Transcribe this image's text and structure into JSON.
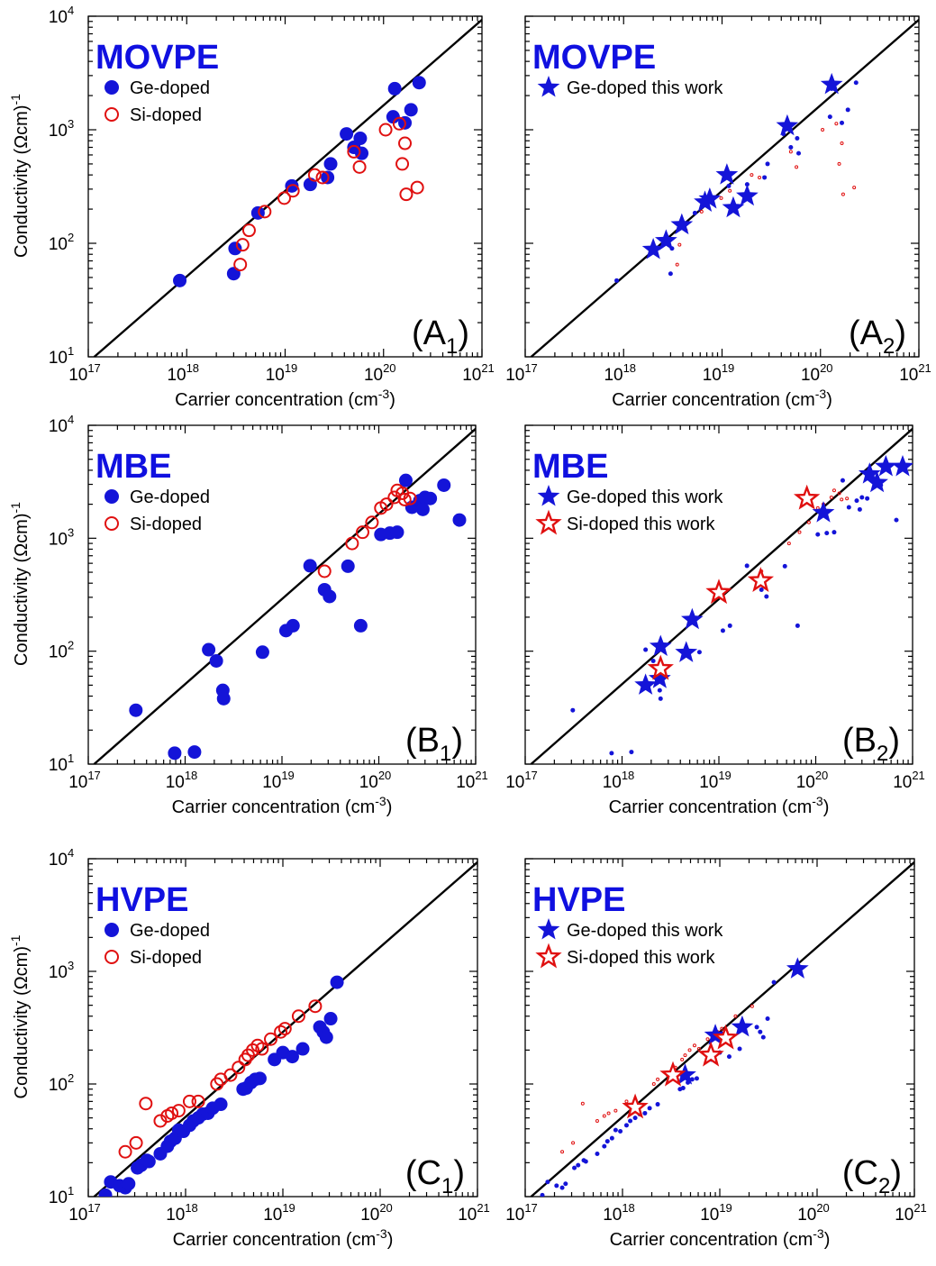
{
  "colors": {
    "ge": "#1414d8",
    "si": "#e01010",
    "title": "#1010e0"
  },
  "chart_data": [
    {
      "id": "A1",
      "type": "scatter",
      "title": "MOVPE",
      "label_main": "A",
      "label_sub": "1",
      "xlabel": "Carrier concentration (cm",
      "xlabel_sup": "-3",
      "xlabel_end": ")",
      "ylabel": "Conductivity (Ωcm)",
      "ylabel_sup": "-1",
      "x_scale": "log",
      "y_scale": "log",
      "xlim": [
        1e+17,
        1e+21
      ],
      "ylim": [
        10,
        10000
      ],
      "legend_position": "top-left",
      "x_ticks": [
        {
          "base": "10",
          "exp": "17"
        },
        {
          "base": "10",
          "exp": "18"
        },
        {
          "base": "10",
          "exp": "19"
        },
        {
          "base": "10",
          "exp": "20"
        },
        {
          "base": "10",
          "exp": "21"
        }
      ],
      "y_ticks": [
        {
          "base": "10",
          "exp": "1"
        },
        {
          "base": "10",
          "exp": "2"
        },
        {
          "base": "10",
          "exp": "3"
        },
        {
          "base": "10",
          "exp": "4"
        }
      ],
      "reference_line": [
        [
          1.15e+17,
          10
        ],
        [
          1.1e+21,
          10000
        ]
      ],
      "series": [
        {
          "name": "Ge-doped",
          "marker": "filled-circle",
          "color": "#1414d8",
          "points": [
            [
              8.5e+17,
              47
            ],
            [
              3e+18,
              54
            ],
            [
              3.1e+18,
              90
            ],
            [
              5.3e+18,
              185
            ],
            [
              1.17e+19,
              320
            ],
            [
              1.8e+19,
              330
            ],
            [
              2.7e+19,
              380
            ],
            [
              2.9e+19,
              500
            ],
            [
              4.2e+19,
              920
            ],
            [
              5e+19,
              700
            ],
            [
              5.8e+19,
              840
            ],
            [
              6e+19,
              620
            ],
            [
              1.25e+20,
              1300
            ],
            [
              1.3e+20,
              2300
            ],
            [
              1.65e+20,
              1150
            ],
            [
              1.9e+20,
              1500
            ],
            [
              2.3e+20,
              2600
            ]
          ]
        },
        {
          "name": "Si-doped",
          "marker": "open-circle",
          "color": "#e01010",
          "points": [
            [
              3.5e+18,
              65
            ],
            [
              3.7e+18,
              97
            ],
            [
              4.3e+18,
              130
            ],
            [
              6.2e+18,
              190
            ],
            [
              9.8e+18,
              250
            ],
            [
              1.2e+19,
              290
            ],
            [
              2e+19,
              400
            ],
            [
              2.4e+19,
              380
            ],
            [
              5e+19,
              640
            ],
            [
              5.7e+19,
              470
            ],
            [
              1.05e+20,
              1000
            ],
            [
              1.45e+20,
              1130
            ],
            [
              1.55e+20,
              500
            ],
            [
              1.65e+20,
              760
            ],
            [
              1.7e+20,
              270
            ],
            [
              2.2e+20,
              310
            ]
          ]
        }
      ]
    },
    {
      "id": "A2",
      "type": "scatter",
      "title": "MOVPE",
      "label_main": "A",
      "label_sub": "2",
      "xlabel": "Carrier concentration (cm",
      "xlabel_sup": "-3",
      "xlabel_end": ")",
      "x_scale": "log",
      "y_scale": "log",
      "xlim": [
        1e+17,
        1e+21
      ],
      "ylim": [
        10,
        10000
      ],
      "legend_position": "top-left",
      "x_ticks": [
        {
          "base": "10",
          "exp": "17"
        },
        {
          "base": "10",
          "exp": "18"
        },
        {
          "base": "10",
          "exp": "19"
        },
        {
          "base": "10",
          "exp": "20"
        },
        {
          "base": "10",
          "exp": "21"
        }
      ],
      "reference_line": [
        [
          1.15e+17,
          10
        ],
        [
          1.1e+21,
          10000
        ]
      ],
      "background_from": "A1",
      "series": [
        {
          "name": "Ge-doped this work",
          "marker": "filled-star",
          "color": "#1414d8",
          "points": [
            [
              2e+18,
              88
            ],
            [
              2.7e+18,
              105
            ],
            [
              3.9e+18,
              145
            ],
            [
              6.7e+18,
              230
            ],
            [
              7.5e+18,
              245
            ],
            [
              1.12e+19,
              400
            ],
            [
              1.3e+19,
              205
            ],
            [
              1.8e+19,
              260
            ],
            [
              4.6e+19,
              1080
            ],
            [
              1.3e+20,
              2500
            ]
          ]
        }
      ]
    },
    {
      "id": "B1",
      "type": "scatter",
      "title": "MBE",
      "label_main": "B",
      "label_sub": "1",
      "xlabel": "Carrier concentration (cm",
      "xlabel_sup": "-3",
      "xlabel_end": ")",
      "ylabel": "Conductivity (Ωcm)",
      "ylabel_sup": "-1",
      "x_scale": "log",
      "y_scale": "log",
      "xlim": [
        1e+17,
        1e+21
      ],
      "ylim": [
        10,
        10000
      ],
      "legend_position": "top-left",
      "x_ticks": [
        {
          "base": "10",
          "exp": "17"
        },
        {
          "base": "10",
          "exp": "18"
        },
        {
          "base": "10",
          "exp": "19"
        },
        {
          "base": "10",
          "exp": "20"
        },
        {
          "base": "10",
          "exp": "21"
        }
      ],
      "y_ticks": [
        {
          "base": "10",
          "exp": "1"
        },
        {
          "base": "10",
          "exp": "2"
        },
        {
          "base": "10",
          "exp": "3"
        },
        {
          "base": "10",
          "exp": "4"
        }
      ],
      "reference_line": [
        [
          1.15e+17,
          10
        ],
        [
          1.1e+21,
          10000
        ]
      ],
      "series": [
        {
          "name": "Ge-doped",
          "marker": "filled-circle",
          "color": "#1414d8",
          "points": [
            [
              3.1e+17,
              30
            ],
            [
              7.8e+17,
              12.5
            ],
            [
              1.25e+18,
              12.8
            ],
            [
              1.75e+18,
              103
            ],
            [
              2.1e+18,
              82
            ],
            [
              2.45e+18,
              45
            ],
            [
              2.5e+18,
              38
            ],
            [
              6.3e+18,
              98
            ],
            [
              1.1e+19,
              152
            ],
            [
              1.3e+19,
              168
            ],
            [
              1.95e+19,
              570
            ],
            [
              2.75e+19,
              350
            ],
            [
              3.1e+19,
              305
            ],
            [
              6.5e+19,
              168
            ],
            [
              4.8e+19,
              565
            ],
            [
              1.05e+20,
              1080
            ],
            [
              1.3e+20,
              1110
            ],
            [
              1.55e+20,
              1130
            ],
            [
              1.9e+20,
              3250
            ],
            [
              2.2e+20,
              1880
            ],
            [
              2.65e+20,
              2150
            ],
            [
              2.85e+20,
              1800
            ],
            [
              3e+20,
              2300
            ],
            [
              3.4e+20,
              2250
            ],
            [
              4.7e+20,
              2950
            ],
            [
              6.8e+20,
              1450
            ]
          ]
        },
        {
          "name": "Si-doped",
          "marker": "open-circle",
          "color": "#e01010",
          "points": [
            [
              2.75e+19,
              510
            ],
            [
              5.3e+19,
              900
            ],
            [
              6.8e+19,
              1130
            ],
            [
              8.5e+19,
              1380
            ],
            [
              1.05e+20,
              1850
            ],
            [
              1.2e+20,
              2000
            ],
            [
              1.45e+20,
              2300
            ],
            [
              1.55e+20,
              2650
            ],
            [
              1.75e+20,
              2500
            ],
            [
              1.85e+20,
              2200
            ],
            [
              2.1e+20,
              2250
            ]
          ]
        }
      ]
    },
    {
      "id": "B2",
      "type": "scatter",
      "title": "MBE",
      "label_main": "B",
      "label_sub": "2",
      "xlabel": "Carrier concentration (cm",
      "xlabel_sup": "-3",
      "xlabel_end": ")",
      "x_scale": "log",
      "y_scale": "log",
      "xlim": [
        1e+17,
        1e+21
      ],
      "ylim": [
        10,
        10000
      ],
      "legend_position": "top-left",
      "x_ticks": [
        {
          "base": "10",
          "exp": "17"
        },
        {
          "base": "10",
          "exp": "18"
        },
        {
          "base": "10",
          "exp": "19"
        },
        {
          "base": "10",
          "exp": "20"
        },
        {
          "base": "10",
          "exp": "21"
        }
      ],
      "reference_line": [
        [
          1.15e+17,
          10
        ],
        [
          1.1e+21,
          10000
        ]
      ],
      "background_from": "B1",
      "series": [
        {
          "name": "Ge-doped this work",
          "marker": "filled-star",
          "color": "#1414d8",
          "points": [
            [
              1.75e+18,
              50
            ],
            [
              2.45e+18,
              57
            ],
            [
              2.5e+18,
              110
            ],
            [
              4.6e+18,
              97
            ],
            [
              5.3e+18,
              190
            ],
            [
              1.2e+20,
              1680
            ],
            [
              3.6e+20,
              3700
            ],
            [
              4.3e+20,
              3100
            ],
            [
              5.3e+20,
              4300
            ],
            [
              7.9e+20,
              4300
            ]
          ]
        },
        {
          "name": "Si-doped this work",
          "marker": "open-star",
          "color": "#e01010",
          "points": [
            [
              2.5e+18,
              70
            ],
            [
              1e+19,
              330
            ],
            [
              2.7e+19,
              420
            ],
            [
              8.1e+19,
              2250
            ]
          ]
        }
      ]
    },
    {
      "id": "C1",
      "type": "scatter",
      "title": "HVPE",
      "label_main": "C",
      "label_sub": "1",
      "xlabel": "Carrier concentration (cm",
      "xlabel_sup": "-3",
      "xlabel_end": ")",
      "ylabel": "Conductivity (Ωcm)",
      "ylabel_sup": "-1",
      "x_scale": "log",
      "y_scale": "log",
      "xlim": [
        1e+17,
        1e+21
      ],
      "ylim": [
        10,
        10000
      ],
      "legend_position": "top-left",
      "x_ticks": [
        {
          "base": "10",
          "exp": "17"
        },
        {
          "base": "10",
          "exp": "18"
        },
        {
          "base": "10",
          "exp": "19"
        },
        {
          "base": "10",
          "exp": "20"
        },
        {
          "base": "10",
          "exp": "21"
        }
      ],
      "y_ticks": [
        {
          "base": "10",
          "exp": "1"
        },
        {
          "base": "10",
          "exp": "2"
        },
        {
          "base": "10",
          "exp": "3"
        },
        {
          "base": "10",
          "exp": "4"
        }
      ],
      "reference_line": [
        [
          1.15e+17,
          10
        ],
        [
          1.1e+21,
          10000
        ]
      ],
      "series": [
        {
          "name": "Ge-doped",
          "marker": "filled-circle",
          "color": "#1414d8",
          "points": [
            [
              1.5e+17,
              10.3
            ],
            [
              1.7e+17,
              13.5
            ],
            [
              2.1e+17,
              12.5
            ],
            [
              2.4e+17,
              12
            ],
            [
              2.6e+17,
              13
            ],
            [
              3.2e+17,
              18
            ],
            [
              3.5e+17,
              19
            ],
            [
              4e+17,
              21
            ],
            [
              4.2e+17,
              20.5
            ],
            [
              5.5e+17,
              24
            ],
            [
              6.5e+17,
              28
            ],
            [
              7e+17,
              31
            ],
            [
              7.8e+17,
              33
            ],
            [
              8.5e+17,
              39
            ],
            [
              9.5e+17,
              38
            ],
            [
              1.1e+18,
              43
            ],
            [
              1.2e+18,
              47
            ],
            [
              1.35e+18,
              50
            ],
            [
              1.5e+18,
              54
            ],
            [
              1.7e+18,
              55
            ],
            [
              1.9e+18,
              61
            ],
            [
              2.3e+18,
              66
            ],
            [
              3.9e+18,
              90
            ],
            [
              4.2e+18,
              92
            ],
            [
              4.7e+18,
              103
            ],
            [
              5.2e+18,
              110
            ],
            [
              5.8e+18,
              112
            ],
            [
              8.2e+18,
              165
            ],
            [
              1e+19,
              190
            ],
            [
              1.25e+19,
              175
            ],
            [
              1.6e+19,
              205
            ],
            [
              2.4e+19,
              320
            ],
            [
              2.6e+19,
              290
            ],
            [
              2.8e+19,
              260
            ],
            [
              3.1e+19,
              380
            ],
            [
              3.6e+19,
              800
            ]
          ]
        },
        {
          "name": "Si-doped",
          "marker": "open-circle",
          "color": "#e01010",
          "points": [
            [
              2.4e+17,
              25
            ],
            [
              3.1e+17,
              30
            ],
            [
              3.9e+17,
              67
            ],
            [
              5.5e+17,
              47
            ],
            [
              6.5e+17,
              52
            ],
            [
              7.2e+17,
              55
            ],
            [
              8.5e+17,
              58
            ],
            [
              1.1e+18,
              70
            ],
            [
              1.35e+18,
              70
            ],
            [
              2.1e+18,
              100
            ],
            [
              2.3e+18,
              110
            ],
            [
              2.9e+18,
              120
            ],
            [
              3.5e+18,
              140
            ],
            [
              4.1e+18,
              165
            ],
            [
              4.4e+18,
              180
            ],
            [
              4.9e+18,
              200
            ],
            [
              5.5e+18,
              220
            ],
            [
              6.1e+18,
              205
            ],
            [
              7.5e+18,
              250
            ],
            [
              9.5e+18,
              290
            ],
            [
              1.05e+19,
              310
            ],
            [
              1.45e+19,
              400
            ],
            [
              2.15e+19,
              490
            ]
          ]
        }
      ]
    },
    {
      "id": "C2",
      "type": "scatter",
      "title": "HVPE",
      "label_main": "C",
      "label_sub": "2",
      "xlabel": "Carrier concentration (cm",
      "xlabel_sup": "-3",
      "xlabel_end": ")",
      "x_scale": "log",
      "y_scale": "log",
      "xlim": [
        1e+17,
        1e+21
      ],
      "ylim": [
        10,
        10000
      ],
      "legend_position": "top-left",
      "x_ticks": [
        {
          "base": "10",
          "exp": "17"
        },
        {
          "base": "10",
          "exp": "18"
        },
        {
          "base": "10",
          "exp": "19"
        },
        {
          "base": "10",
          "exp": "20"
        },
        {
          "base": "10",
          "exp": "21"
        }
      ],
      "reference_line": [
        [
          1.15e+17,
          10
        ],
        [
          1.1e+21,
          10000
        ]
      ],
      "background_from": "C1",
      "series": [
        {
          "name": "Ge-doped this work",
          "marker": "filled-star",
          "color": "#1414d8",
          "points": [
            [
              4.4e+18,
              120
            ],
            [
              9e+18,
              270
            ],
            [
              1.7e+19,
              320
            ],
            [
              6.3e+19,
              1050
            ]
          ]
        },
        {
          "name": "Si-doped this work",
          "marker": "open-star",
          "color": "#e01010",
          "points": [
            [
              1.35e+18,
              62
            ],
            [
              3.3e+18,
              120
            ],
            [
              8.1e+18,
              180
            ],
            [
              1.15e+19,
              255
            ]
          ]
        }
      ]
    }
  ]
}
